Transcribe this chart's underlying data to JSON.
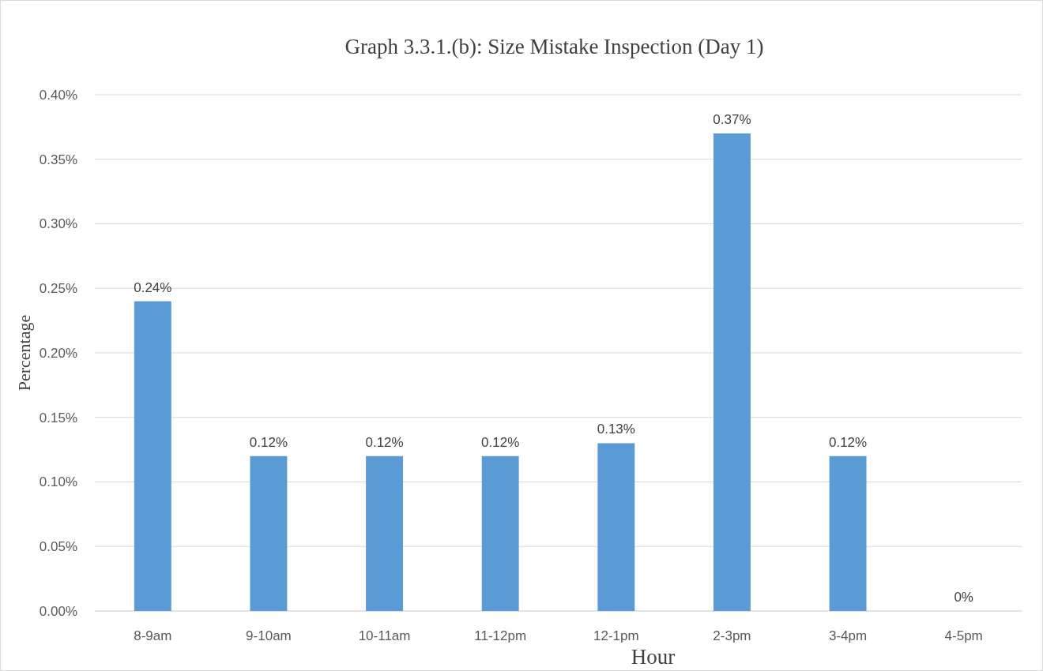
{
  "chart_data": {
    "type": "bar",
    "title": "Graph 3.3.1.(b): Size Mistake Inspection (Day 1)",
    "xlabel": "Hour",
    "ylabel": "Percentage",
    "categories": [
      "8-9am",
      "9-10am",
      "10-11am",
      "11-12pm",
      "12-1pm",
      "2-3pm",
      "3-4pm",
      "4-5pm"
    ],
    "values": [
      0.24,
      0.12,
      0.12,
      0.12,
      0.13,
      0.37,
      0.12,
      0
    ],
    "value_labels": [
      "0.24%",
      "0.12%",
      "0.12%",
      "0.12%",
      "0.13%",
      "0.37%",
      "0.12%",
      "0%"
    ],
    "color": "#5b9bd5",
    "ylim": [
      0,
      0.4
    ],
    "yticks": [
      {
        "value": 0,
        "label": "0.00%"
      },
      {
        "value": 0.05,
        "label": "0.05%"
      },
      {
        "value": 0.1,
        "label": "0.10%"
      },
      {
        "value": 0.15,
        "label": "0.15%"
      },
      {
        "value": 0.2,
        "label": "0.20%"
      },
      {
        "value": 0.25,
        "label": "0.25%"
      },
      {
        "value": 0.3,
        "label": "0.30%"
      },
      {
        "value": 0.35,
        "label": "0.35%"
      },
      {
        "value": 0.4,
        "label": "0.40%"
      }
    ],
    "grid": "y"
  }
}
